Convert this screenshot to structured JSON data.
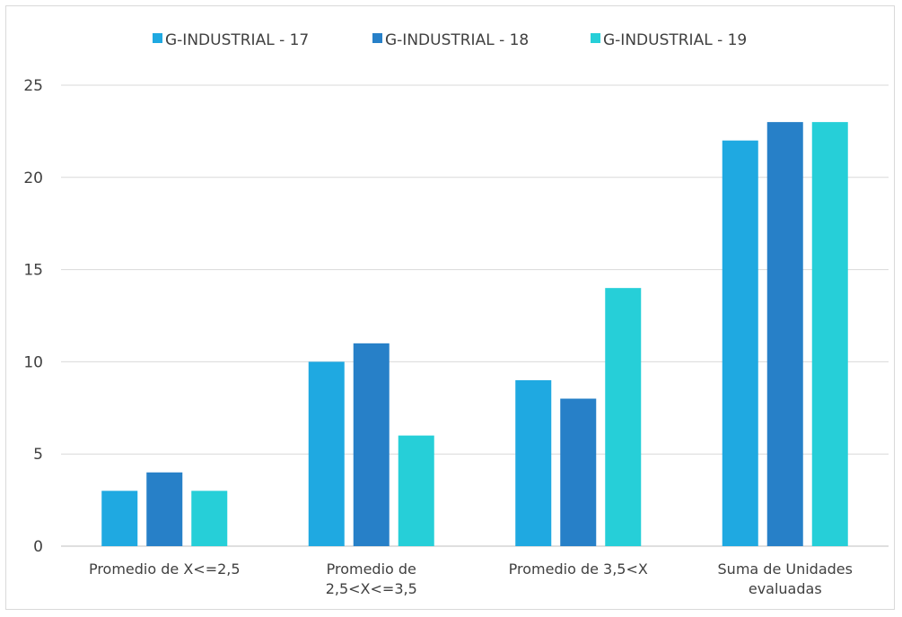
{
  "chart_data": {
    "type": "bar",
    "categories": [
      [
        "Promedio de X<=2,5"
      ],
      [
        "Promedio de",
        "2,5<X<=3,5"
      ],
      [
        "Promedio de 3,5<X"
      ],
      [
        "Suma de Unidades",
        "evaluadas"
      ]
    ],
    "series": [
      {
        "name": "G-INDUSTRIAL - 17",
        "values": [
          3,
          10,
          9,
          22
        ],
        "color": "#1FA9E1"
      },
      {
        "name": "G-INDUSTRIAL - 18",
        "values": [
          4,
          11,
          8,
          23
        ],
        "color": "#2780C8"
      },
      {
        "name": "G-INDUSTRIAL - 19",
        "values": [
          3,
          6,
          14,
          23
        ],
        "color": "#26CFD8"
      }
    ],
    "yticks": [
      "0",
      "5",
      "10",
      "15",
      "20",
      "25"
    ],
    "ylim": [
      0,
      25
    ],
    "grid": true,
    "legend": "top-center",
    "gridColor": "#d9d9d9"
  }
}
